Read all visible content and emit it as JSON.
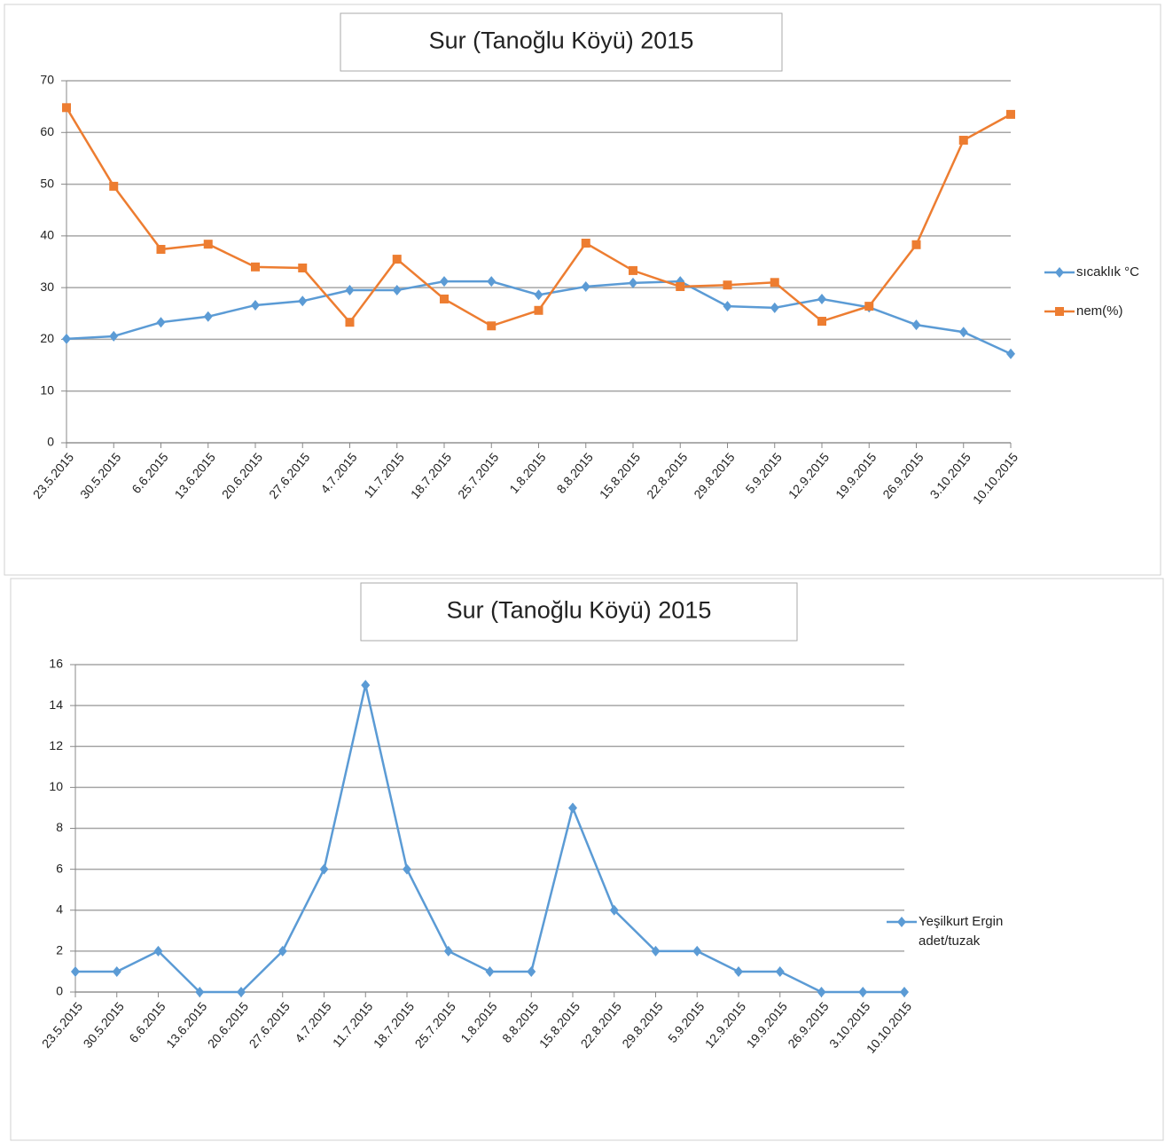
{
  "chart_data": [
    {
      "type": "line",
      "title": "Sur (Tanoğlu Köyü) 2015",
      "categories": [
        "23.5.2015",
        "30.5.2015",
        "6.6.2015",
        "13.6.2015",
        "20.6.2015",
        "27.6.2015",
        "4.7.2015",
        "11.7.2015",
        "18.7.2015",
        "25.7.2015",
        "1.8.2015",
        "8.8.2015",
        "15.8.2015",
        "22.8.2015",
        "29.8.2015",
        "5.9.2015",
        "12.9.2015",
        "19.9.2015",
        "26.9.2015",
        "3.10.2015",
        "10.10.2015"
      ],
      "series": [
        {
          "name": "sıcaklık °C",
          "color": "#5b9bd5",
          "marker": "diamond",
          "values": [
            20.1,
            20.6,
            23.3,
            24.4,
            26.6,
            27.4,
            29.5,
            29.5,
            31.2,
            31.2,
            28.6,
            30.2,
            30.9,
            31.2,
            26.4,
            26.1,
            27.8,
            26.2,
            22.8,
            21.4,
            17.2
          ]
        },
        {
          "name": "nem(%)",
          "color": "#ed7d31",
          "marker": "square",
          "values": [
            64.8,
            49.6,
            37.4,
            38.4,
            34,
            33.8,
            23.3,
            35.5,
            27.8,
            22.6,
            25.6,
            38.6,
            33.3,
            30.2,
            30.5,
            31,
            23.5,
            26.4,
            38.3,
            58.5,
            63.5
          ]
        }
      ],
      "ylim": [
        0,
        70
      ],
      "yticks": [
        0,
        10,
        20,
        30,
        40,
        50,
        60,
        70
      ],
      "grid": true,
      "legend": "right"
    },
    {
      "type": "line",
      "title": "Sur (Tanoğlu Köyü) 2015",
      "categories": [
        "23.5.2015",
        "30.5.2015",
        "6.6.2015",
        "13.6.2015",
        "20.6.2015",
        "27.6.2015",
        "4.7.2015",
        "11.7.2015",
        "18.7.2015",
        "25.7.2015",
        "1.8.2015",
        "8.8.2015",
        "15.8.2015",
        "22.8.2015",
        "29.8.2015",
        "5.9.2015",
        "12.9.2015",
        "19.9.2015",
        "26.9.2015",
        "3.10.2015",
        "10.10.2015"
      ],
      "series": [
        {
          "name": "Yeşilkurt Ergin adet/tuzak",
          "color": "#5b9bd5",
          "marker": "diamond",
          "values": [
            1,
            1,
            2,
            0,
            0,
            2,
            6,
            15,
            6,
            2,
            1,
            1,
            9,
            4,
            2,
            2,
            1,
            1,
            0,
            0,
            0
          ]
        }
      ],
      "ylim": [
        0,
        16
      ],
      "yticks": [
        0,
        2,
        4,
        6,
        8,
        10,
        12,
        14,
        16
      ],
      "grid": true,
      "legend": "right"
    }
  ]
}
